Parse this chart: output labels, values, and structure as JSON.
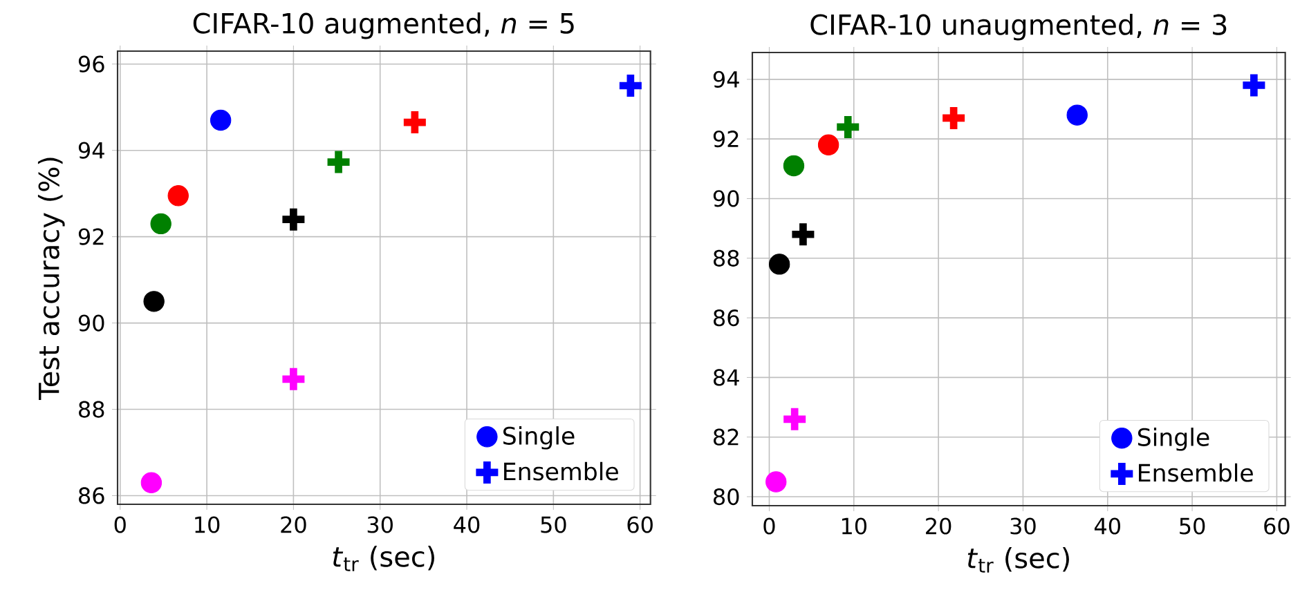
{
  "chart_data": [
    {
      "type": "scatter",
      "title": "CIFAR-10 augmented, *n* = 5",
      "xlabel": "*t*$_{tr}$ (sec)",
      "ylabel": "Test accuracy (%)",
      "xlim": [
        -0.3,
        61.2
      ],
      "ylim": [
        85.8,
        96.3
      ],
      "xticks": [
        0,
        10,
        20,
        30,
        40,
        50,
        60
      ],
      "yticks": [
        86,
        88,
        90,
        92,
        94,
        96
      ],
      "grid": true,
      "legend": "bottom right",
      "series": [
        {
          "name": "Single",
          "marker": "circle",
          "color": "#0000ff",
          "x": [
            3.6,
            3.9,
            4.7,
            6.7,
            11.6
          ],
          "values": [
            86.3,
            90.5,
            92.3,
            92.95,
            94.7
          ],
          "colors": [
            "#ff00ff",
            "#000000",
            "#008000",
            "#ff0000",
            "#0000ff"
          ]
        },
        {
          "name": "Ensemble",
          "marker": "cross",
          "color": "#0000ff",
          "x": [
            20,
            20,
            25.2,
            34.0,
            58.9
          ],
          "values": [
            88.7,
            92.4,
            93.73,
            94.65,
            95.5
          ],
          "colors": [
            "#ff00ff",
            "#000000",
            "#008000",
            "#ff0000",
            "#0000ff"
          ]
        }
      ]
    },
    {
      "type": "scatter",
      "title": "CIFAR-10 unaugmented, *n* = 3",
      "xlabel": "*t*$_{tr}$ (sec)",
      "xlim": [
        -2,
        61
      ],
      "ylim": [
        79.7,
        94.9
      ],
      "xticks": [
        0,
        10,
        20,
        30,
        40,
        50,
        60
      ],
      "yticks": [
        80,
        82,
        84,
        86,
        88,
        90,
        92,
        94
      ],
      "grid": true,
      "legend": "bottom right",
      "series": [
        {
          "name": "Single",
          "marker": "circle",
          "color": "#0000ff",
          "x": [
            0.8,
            1.2,
            2.9,
            7.0,
            36.4
          ],
          "values": [
            80.5,
            87.8,
            91.1,
            91.8,
            92.8
          ],
          "colors": [
            "#ff00ff",
            "#000000",
            "#008000",
            "#ff0000",
            "#0000ff"
          ]
        },
        {
          "name": "Ensemble",
          "marker": "cross",
          "color": "#0000ff",
          "x": [
            3.0,
            4.0,
            9.3,
            21.8,
            57.3
          ],
          "values": [
            82.6,
            88.8,
            92.4,
            92.7,
            93.8
          ],
          "colors": [
            "#ff00ff",
            "#000000",
            "#008000",
            "#ff0000",
            "#0000ff"
          ]
        }
      ]
    }
  ]
}
